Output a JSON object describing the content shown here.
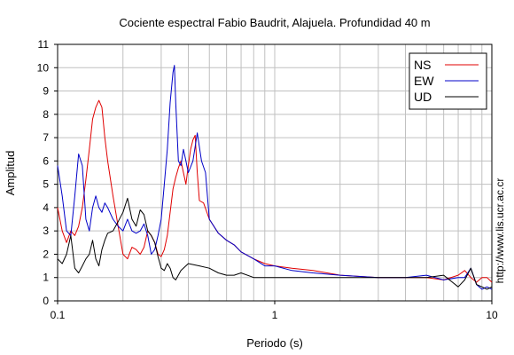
{
  "chart_data": {
    "type": "line",
    "title": "Cociente espectral Fabio Baudrit, Alajuela. Profundidad 40 m",
    "xlabel": "Periodo (s)",
    "ylabel": "Amplitud",
    "x_scale": "log",
    "xlim": [
      0.1,
      10
    ],
    "ylim": [
      0,
      11
    ],
    "x_ticks": [
      "0.1",
      "1",
      "10"
    ],
    "y_ticks": [
      "0",
      "1",
      "2",
      "3",
      "4",
      "5",
      "6",
      "7",
      "8",
      "9",
      "10",
      "11"
    ],
    "grid": true,
    "legend": "top-right",
    "side_text": "http://www.lis.ucr.ac.cr",
    "series": [
      {
        "name": "NS",
        "color": "#e00000",
        "x": [
          0.1,
          0.105,
          0.11,
          0.115,
          0.12,
          0.125,
          0.13,
          0.135,
          0.14,
          0.145,
          0.15,
          0.155,
          0.16,
          0.165,
          0.17,
          0.18,
          0.19,
          0.2,
          0.21,
          0.22,
          0.23,
          0.24,
          0.25,
          0.26,
          0.27,
          0.28,
          0.29,
          0.3,
          0.31,
          0.32,
          0.33,
          0.34,
          0.35,
          0.36,
          0.37,
          0.38,
          0.39,
          0.4,
          0.41,
          0.42,
          0.43,
          0.44,
          0.45,
          0.47,
          0.5,
          0.55,
          0.6,
          0.65,
          0.7,
          0.8,
          0.9,
          1.0,
          1.2,
          1.5,
          2,
          3,
          4,
          5,
          6,
          7,
          7.5,
          8,
          8.5,
          9,
          9.5,
          10
        ],
        "values": [
          4.0,
          3.0,
          2.5,
          3.0,
          2.8,
          3.2,
          4.0,
          5.2,
          6.5,
          7.8,
          8.3,
          8.6,
          8.3,
          7.0,
          6.0,
          4.5,
          3.2,
          2.0,
          1.8,
          2.3,
          2.2,
          2.0,
          2.3,
          3.0,
          2.8,
          2.5,
          2.0,
          1.9,
          2.2,
          2.8,
          3.8,
          4.8,
          5.3,
          5.7,
          6.0,
          5.5,
          5.0,
          5.8,
          6.5,
          6.9,
          7.1,
          5.5,
          4.3,
          4.2,
          3.5,
          2.9,
          2.6,
          2.4,
          2.1,
          1.8,
          1.6,
          1.5,
          1.4,
          1.3,
          1.1,
          1.0,
          1.0,
          1.0,
          0.9,
          1.1,
          1.3,
          1.0,
          0.8,
          1.0,
          1.0,
          0.8
        ]
      },
      {
        "name": "EW",
        "color": "#0000c8",
        "x": [
          0.1,
          0.105,
          0.11,
          0.115,
          0.12,
          0.125,
          0.13,
          0.135,
          0.14,
          0.145,
          0.15,
          0.155,
          0.16,
          0.165,
          0.17,
          0.18,
          0.19,
          0.2,
          0.21,
          0.22,
          0.23,
          0.24,
          0.25,
          0.26,
          0.27,
          0.28,
          0.29,
          0.3,
          0.31,
          0.32,
          0.33,
          0.34,
          0.345,
          0.35,
          0.36,
          0.37,
          0.38,
          0.39,
          0.4,
          0.42,
          0.44,
          0.46,
          0.48,
          0.5,
          0.55,
          0.6,
          0.65,
          0.7,
          0.8,
          0.9,
          1.0,
          1.2,
          1.5,
          2,
          3,
          4,
          5,
          6,
          7,
          7.5,
          8,
          8.5,
          9,
          9.5,
          10
        ],
        "values": [
          5.8,
          4.5,
          3.0,
          2.8,
          4.5,
          6.3,
          5.8,
          3.5,
          3.0,
          4.0,
          4.5,
          4.0,
          3.8,
          4.2,
          4.0,
          3.5,
          3.2,
          3.0,
          3.5,
          3.0,
          2.9,
          3.0,
          3.3,
          2.8,
          2.0,
          2.2,
          2.8,
          3.5,
          5.0,
          6.5,
          8.5,
          9.8,
          10.1,
          8.5,
          6.0,
          5.8,
          6.5,
          6.0,
          5.5,
          6.0,
          7.2,
          6.0,
          5.5,
          3.5,
          2.9,
          2.6,
          2.4,
          2.1,
          1.8,
          1.5,
          1.5,
          1.3,
          1.2,
          1.1,
          1.0,
          1.0,
          1.1,
          0.9,
          1.0,
          1.0,
          1.4,
          0.7,
          0.5,
          0.6,
          0.5
        ]
      },
      {
        "name": "UD",
        "color": "#000000",
        "x": [
          0.1,
          0.105,
          0.11,
          0.115,
          0.12,
          0.125,
          0.13,
          0.135,
          0.14,
          0.145,
          0.15,
          0.155,
          0.16,
          0.165,
          0.17,
          0.18,
          0.19,
          0.2,
          0.21,
          0.22,
          0.23,
          0.24,
          0.25,
          0.26,
          0.27,
          0.28,
          0.29,
          0.3,
          0.31,
          0.32,
          0.33,
          0.34,
          0.35,
          0.37,
          0.4,
          0.45,
          0.5,
          0.55,
          0.6,
          0.65,
          0.7,
          0.8,
          0.9,
          1.0,
          1.2,
          1.5,
          2,
          3,
          4,
          5,
          6,
          7,
          7.5,
          8,
          8.5,
          9,
          9.5,
          10
        ],
        "values": [
          1.8,
          1.6,
          2.0,
          2.8,
          1.4,
          1.2,
          1.5,
          1.8,
          2.0,
          2.6,
          1.8,
          1.5,
          2.2,
          2.6,
          2.9,
          3.0,
          3.4,
          3.8,
          4.4,
          3.5,
          3.2,
          3.9,
          3.7,
          3.0,
          2.8,
          2.5,
          1.9,
          1.4,
          1.3,
          1.6,
          1.4,
          1.0,
          0.9,
          1.3,
          1.6,
          1.5,
          1.4,
          1.2,
          1.1,
          1.1,
          1.2,
          1.0,
          1.0,
          1.0,
          1.0,
          1.0,
          1.0,
          1.0,
          1.0,
          1.0,
          1.1,
          0.6,
          0.9,
          1.4,
          0.7,
          0.6,
          0.5,
          0.6
        ]
      }
    ]
  }
}
